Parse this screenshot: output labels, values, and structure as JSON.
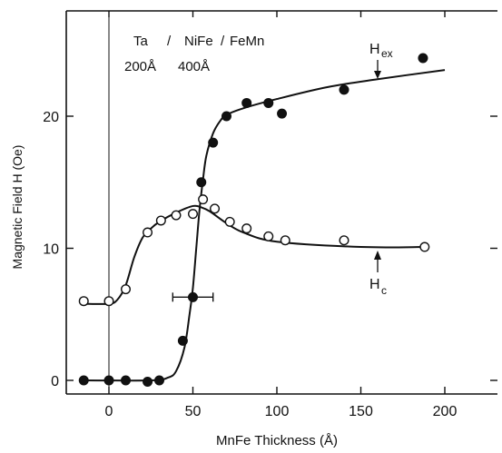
{
  "chart_data": {
    "type": "scatter",
    "xlabel": "MnFe Thickness (Å)",
    "ylabel": "Magnetic Field H (Oe)",
    "xlim": [
      -25,
      230
    ],
    "ylim": [
      -1,
      28
    ],
    "xticks": [
      0,
      50,
      100,
      150,
      200
    ],
    "yticks": [
      0,
      10,
      20
    ],
    "annotation": {
      "line1_left": "Ta",
      "line1_sep1": "/",
      "line1_mid": "NiFe",
      "line1_sep2": "/",
      "line1_right": "FeMn",
      "line2_left": "200Å",
      "line2_mid": "400Å"
    },
    "series": [
      {
        "label_main": "H",
        "label_sub": "ex",
        "marker": "filled-circle",
        "x": [
          -15,
          0,
          10,
          23,
          30,
          44,
          50,
          55,
          62,
          70,
          82,
          95,
          103,
          140,
          187
        ],
        "y": [
          0,
          0,
          0,
          -0.1,
          0,
          3,
          6.3,
          15,
          18,
          20,
          21,
          21,
          20.2,
          22,
          24.4
        ],
        "fit_x": [
          -15,
          25,
          35,
          40,
          45,
          48,
          50,
          52,
          54,
          56,
          58,
          62,
          66,
          70,
          80,
          100,
          130,
          160,
          200
        ],
        "fit_y": [
          0,
          0,
          0.2,
          0.7,
          2.5,
          5,
          7,
          10,
          13,
          15.2,
          17,
          18.7,
          19.6,
          20.1,
          20.6,
          21.3,
          22.2,
          22.8,
          23.5
        ],
        "error_bar": {
          "x": 50,
          "y": 6.3,
          "xerr": 12
        }
      },
      {
        "label_main": "H",
        "label_sub": "c",
        "marker": "open-circle",
        "x": [
          -15,
          0,
          10,
          23,
          31,
          40,
          50,
          56,
          63,
          72,
          82,
          95,
          105,
          140,
          188
        ],
        "y": [
          6,
          6,
          6.9,
          11.2,
          12.1,
          12.5,
          12.6,
          13.7,
          13,
          12,
          11.5,
          10.9,
          10.6,
          10.6,
          10.1
        ],
        "fit_x": [
          -15,
          0,
          5,
          10,
          15,
          20,
          25,
          30,
          40,
          50,
          55,
          60,
          70,
          80,
          100,
          150,
          188
        ],
        "fit_y": [
          5.8,
          5.8,
          6.1,
          7.2,
          9.3,
          10.8,
          11.5,
          12,
          12.7,
          13.2,
          13.1,
          12.8,
          11.9,
          11.2,
          10.5,
          10.1,
          10.1
        ]
      }
    ]
  }
}
